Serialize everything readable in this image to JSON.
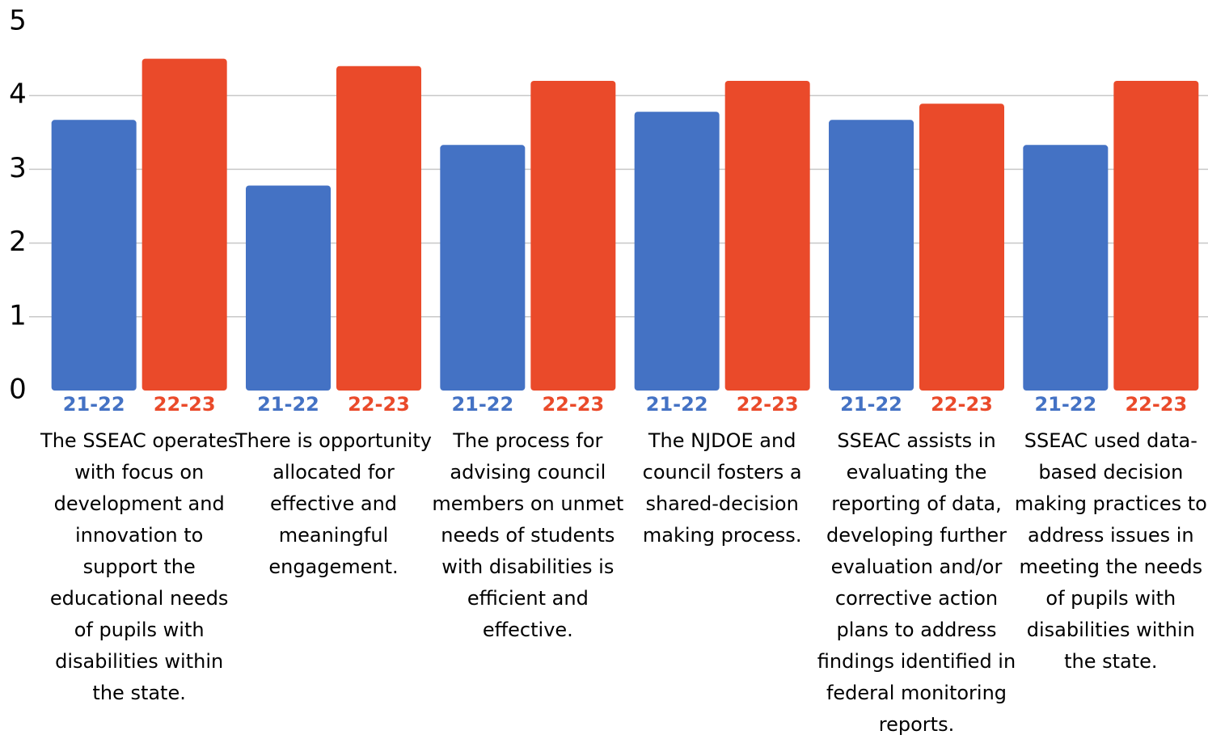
{
  "chart_data": {
    "type": "bar",
    "categories": [
      "The SSEAC operates with focus on development and innovation to support the educational needs of pupils with disabilities within the state.",
      "There is opportunity allocated for effective and meaningful engagement.",
      "The process for advising council members on unmet needs of students with disabilities is efficient and effective.",
      "The NJDOE and council fosters a shared-decision making process.",
      "SSEAC assists in evaluating the reporting of data, developing further evaluation and/or corrective action plans to address findings identified in federal monitoring reports.",
      "SSEAC used data-based decision making practices to address issues in meeting the needs of pupils with disabilities within the state."
    ],
    "series": [
      {
        "name": "21-22",
        "color": "#4472c4",
        "values": [
          3.67,
          2.78,
          3.33,
          3.78,
          3.67,
          3.33
        ]
      },
      {
        "name": "22-23",
        "color": "#ea4a2a",
        "values": [
          4.5,
          4.4,
          4.2,
          4.2,
          3.89,
          4.2
        ]
      }
    ],
    "ylim": [
      0,
      5
    ],
    "yticks": [
      0,
      1,
      2,
      3,
      4,
      5
    ],
    "grid": true
  }
}
